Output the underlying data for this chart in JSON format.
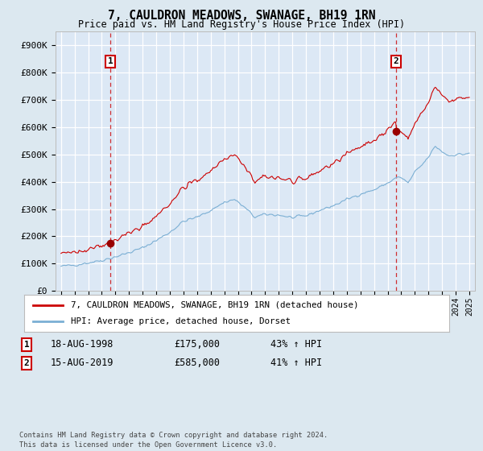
{
  "title": "7, CAULDRON MEADOWS, SWANAGE, BH19 1RN",
  "subtitle": "Price paid vs. HM Land Registry's House Price Index (HPI)",
  "legend_line1": "7, CAULDRON MEADOWS, SWANAGE, BH19 1RN (detached house)",
  "legend_line2": "HPI: Average price, detached house, Dorset",
  "sale1_label": "1",
  "sale1_date": "18-AUG-1998",
  "sale1_price": "£175,000",
  "sale1_hpi": "43% ↑ HPI",
  "sale1_year": 1998.63,
  "sale1_value": 175000,
  "sale2_label": "2",
  "sale2_date": "15-AUG-2019",
  "sale2_price": "£585,000",
  "sale2_hpi": "41% ↑ HPI",
  "sale2_year": 2019.63,
  "sale2_value": 585000,
  "red_line_color": "#cc0000",
  "blue_line_color": "#7bafd4",
  "background_color": "#dce8f0",
  "plot_bg_color": "#dce8f5",
  "grid_color": "#ffffff",
  "ylim": [
    0,
    950000
  ],
  "yticks": [
    0,
    100000,
    200000,
    300000,
    400000,
    500000,
    600000,
    700000,
    800000,
    900000
  ],
  "ytick_labels": [
    "£0",
    "£100K",
    "£200K",
    "£300K",
    "£400K",
    "£500K",
    "£600K",
    "£700K",
    "£800K",
    "£900K"
  ],
  "footer": "Contains HM Land Registry data © Crown copyright and database right 2024.\nThis data is licensed under the Open Government Licence v3.0."
}
